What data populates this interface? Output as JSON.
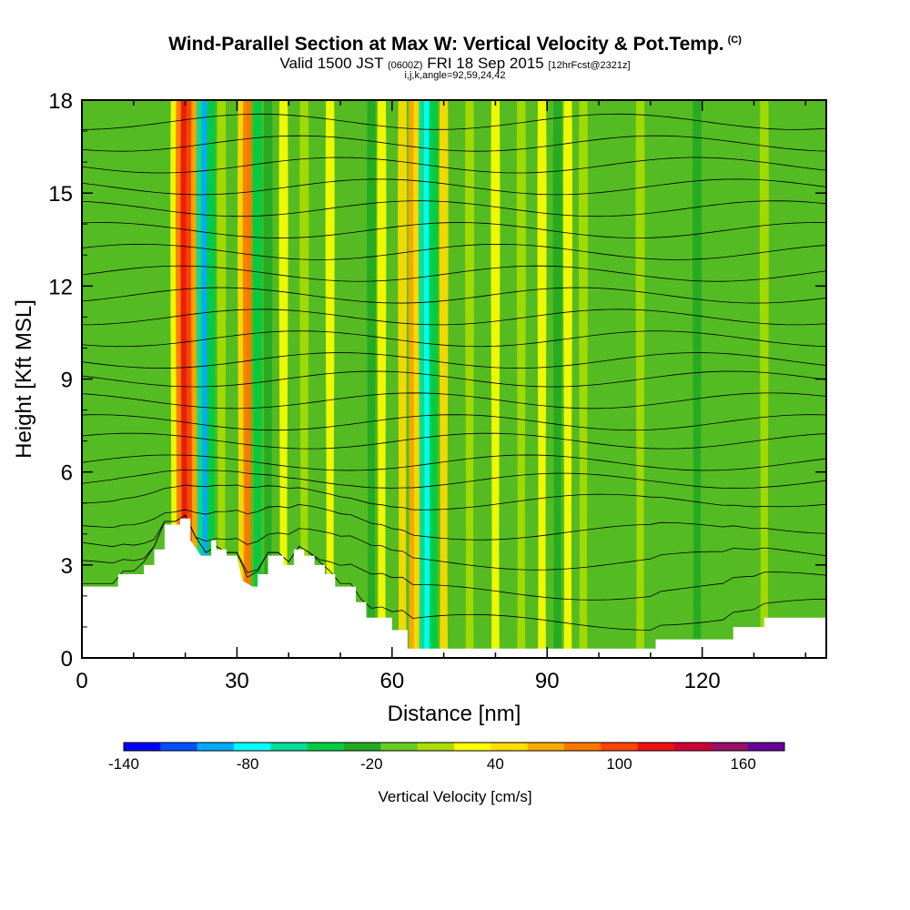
{
  "title": {
    "main": "Wind-Parallel Section at Max W: Vertical Velocity & Pot.Temp.",
    "copyright": "(C)",
    "valid_prefix": "Valid 1500 JST",
    "valid_utc": "(0600Z)",
    "valid_date": "FRI 18 Sep 2015",
    "forecast": "[12hrFcst@2321z]",
    "indices": "i,j,k,angle=92,59,24,42"
  },
  "chart_data": {
    "type": "heatmap",
    "xlabel": "Distance [nm]",
    "ylabel": "Height [Kft MSL]",
    "xlim": [
      0,
      144
    ],
    "ylim": [
      0,
      18
    ],
    "x_ticks": [
      0,
      30,
      60,
      90,
      120
    ],
    "y_ticks": [
      0,
      3,
      6,
      9,
      12,
      15,
      18
    ],
    "colorbar": {
      "label": "Vertical Velocity [cm/s]",
      "min": -140,
      "max": 180,
      "step": 20,
      "tick_labels": [
        -140,
        -80,
        -20,
        40,
        100,
        160
      ],
      "colors": [
        "#0000ff",
        "#0050ff",
        "#00aaff",
        "#00ffff",
        "#00dd99",
        "#00cc44",
        "#22aa22",
        "#66cc22",
        "#aadd00",
        "#ffff00",
        "#ffdd00",
        "#ffaa00",
        "#ff7700",
        "#ff4400",
        "#ee1111",
        "#cc0033",
        "#991166",
        "#660099"
      ]
    },
    "terrain_kft": [
      [
        0,
        2.3
      ],
      [
        7,
        2.3
      ],
      [
        7,
        2.7
      ],
      [
        12,
        2.7
      ],
      [
        12,
        3.0
      ],
      [
        14,
        3.0
      ],
      [
        14,
        3.5
      ],
      [
        16,
        3.5
      ],
      [
        16,
        4.3
      ],
      [
        19,
        4.3
      ],
      [
        19,
        4.5
      ],
      [
        21,
        4.5
      ],
      [
        21,
        3.8
      ],
      [
        23,
        3.3
      ],
      [
        25,
        3.3
      ],
      [
        25,
        3.8
      ],
      [
        26,
        3.8
      ],
      [
        26,
        3.5
      ],
      [
        28,
        3.5
      ],
      [
        28,
        3.3
      ],
      [
        30,
        3.3
      ],
      [
        31,
        2.5
      ],
      [
        33,
        2.3
      ],
      [
        34,
        2.3
      ],
      [
        34,
        2.7
      ],
      [
        36,
        2.7
      ],
      [
        36,
        3.3
      ],
      [
        39,
        3.3
      ],
      [
        39,
        3.0
      ],
      [
        41,
        3.0
      ],
      [
        41,
        3.5
      ],
      [
        43,
        3.5
      ],
      [
        43,
        3.3
      ],
      [
        45,
        3.3
      ],
      [
        45,
        3.0
      ],
      [
        47,
        3.0
      ],
      [
        47,
        2.7
      ],
      [
        49,
        2.7
      ],
      [
        49,
        2.3
      ],
      [
        53,
        2.3
      ],
      [
        53,
        1.8
      ],
      [
        55,
        1.8
      ],
      [
        55,
        1.3
      ],
      [
        60,
        1.3
      ],
      [
        60,
        0.9
      ],
      [
        63,
        0.9
      ],
      [
        63,
        0.3
      ],
      [
        111,
        0.3
      ],
      [
        111,
        0.6
      ],
      [
        126,
        0.6
      ],
      [
        126,
        1.0
      ],
      [
        132,
        1.0
      ],
      [
        132,
        1.3
      ],
      [
        144,
        1.3
      ]
    ],
    "vertical_velocity_bands": [
      {
        "x": 18,
        "w_cms": 40
      },
      {
        "x": 19,
        "w_cms": 100
      },
      {
        "x": 20,
        "w_cms": 140
      },
      {
        "x": 21,
        "w_cms": 120
      },
      {
        "x": 22,
        "w_cms": 80
      },
      {
        "x": 23,
        "w_cms": -60
      },
      {
        "x": 24,
        "w_cms": -100
      },
      {
        "x": 25,
        "w_cms": -40
      },
      {
        "x": 27,
        "w_cms": 20
      },
      {
        "x": 31,
        "w_cms": 60
      },
      {
        "x": 32,
        "w_cms": 100
      },
      {
        "x": 34,
        "w_cms": -40
      },
      {
        "x": 36,
        "w_cms": -20
      },
      {
        "x": 39,
        "w_cms": 40
      },
      {
        "x": 43,
        "w_cms": 20
      },
      {
        "x": 48,
        "w_cms": 40
      },
      {
        "x": 56,
        "w_cms": -20
      },
      {
        "x": 58,
        "w_cms": 40
      },
      {
        "x": 62,
        "w_cms": 60
      },
      {
        "x": 64,
        "w_cms": 80
      },
      {
        "x": 65,
        "w_cms": 60
      },
      {
        "x": 66,
        "w_cms": -60
      },
      {
        "x": 67,
        "w_cms": -80
      },
      {
        "x": 68,
        "w_cms": -40
      },
      {
        "x": 70,
        "w_cms": 60
      },
      {
        "x": 75,
        "w_cms": 20
      },
      {
        "x": 80,
        "w_cms": 40
      },
      {
        "x": 85,
        "w_cms": 20
      },
      {
        "x": 89,
        "w_cms": 40
      },
      {
        "x": 92,
        "w_cms": -20
      },
      {
        "x": 94,
        "w_cms": 40
      },
      {
        "x": 97,
        "w_cms": 20
      },
      {
        "x": 108,
        "w_cms": 20
      },
      {
        "x": 119,
        "w_cms": -20
      },
      {
        "x": 132,
        "w_cms": 20
      }
    ],
    "theta_contour_heights_kft": [
      1,
      2,
      3,
      4,
      5,
      5.7,
      6.3,
      7,
      7.6,
      8.3,
      9,
      9.6,
      10.3,
      11,
      11.7,
      12.4,
      13.1,
      13.8,
      14.5,
      15.2,
      15.9,
      16.6,
      17.3
    ]
  }
}
